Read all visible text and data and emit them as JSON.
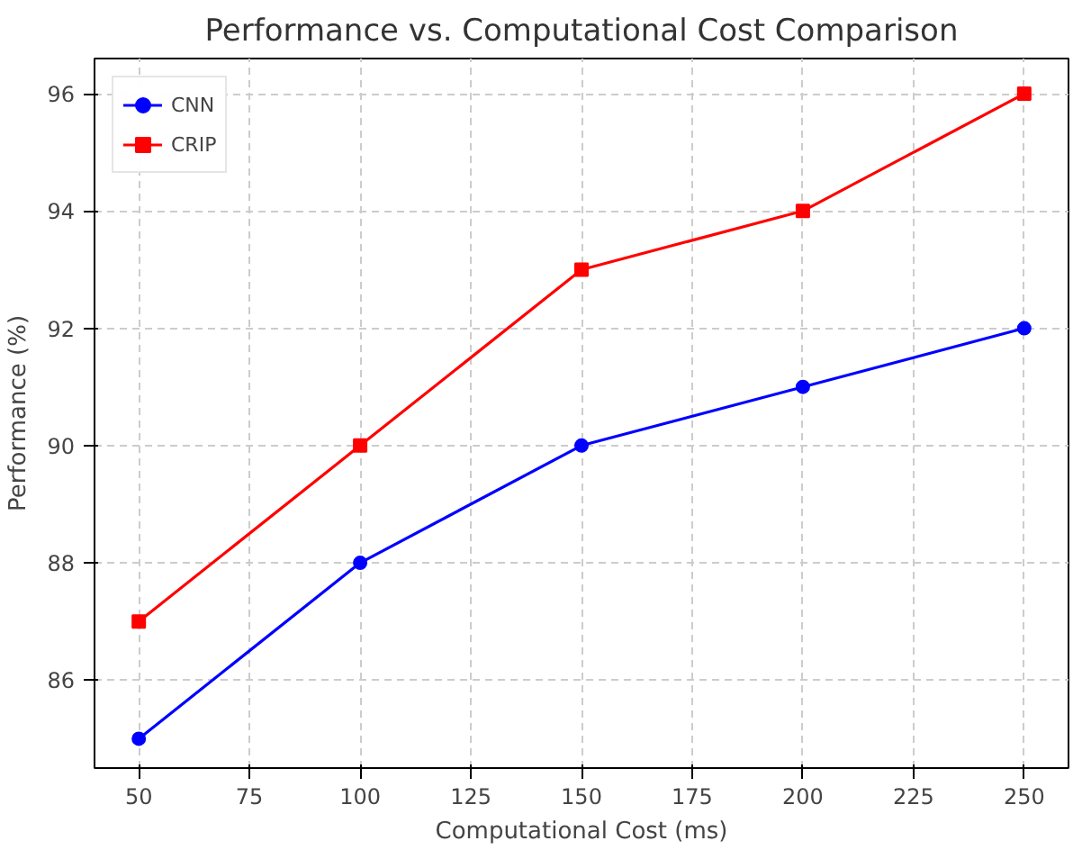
{
  "chart_data": {
    "type": "line",
    "title": "Performance vs. Computational Cost Comparison",
    "xlabel": "Computational Cost (ms)",
    "ylabel": "Performance (%)",
    "x": [
      50,
      100,
      150,
      200,
      250
    ],
    "series": [
      {
        "name": "CNN",
        "color": "#0000ff",
        "marker": "circle",
        "values": [
          85,
          88,
          90,
          91,
          92
        ]
      },
      {
        "name": "CRIP",
        "color": "#ff0000",
        "marker": "square",
        "values": [
          87,
          90,
          93,
          94,
          96
        ]
      }
    ],
    "xlim": [
      40,
      260
    ],
    "xticks": [
      50,
      75,
      100,
      125,
      150,
      175,
      200,
      225,
      250
    ],
    "ylim": [
      84.5,
      96.6
    ],
    "yticks": [
      86,
      88,
      90,
      92,
      94,
      96
    ],
    "grid": true,
    "legend": "top left",
    "line_style": "solid"
  }
}
